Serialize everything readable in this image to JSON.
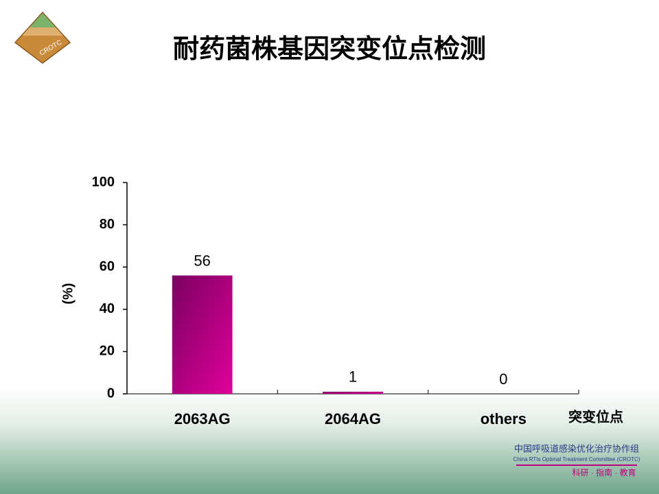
{
  "chart_data": {
    "type": "bar",
    "title": "耐药菌株基因突变位点检测",
    "categories": [
      "2063AG",
      "2064AG",
      "others"
    ],
    "values": [
      56,
      1,
      0
    ],
    "color": "#b0007f",
    "ylim": [
      0,
      100
    ],
    "yticks": [
      0,
      20,
      40,
      60,
      80,
      100
    ],
    "y_label": "(%)",
    "x_label": "突变位点"
  },
  "logo": "CROTC",
  "footer": {
    "org_cn": "中国呼吸道感染优化治疗协作组",
    "org_en": "China RTIs Optimal Treatment Committee (CROTC)",
    "motto": "科研 · 指南 · 教育"
  }
}
